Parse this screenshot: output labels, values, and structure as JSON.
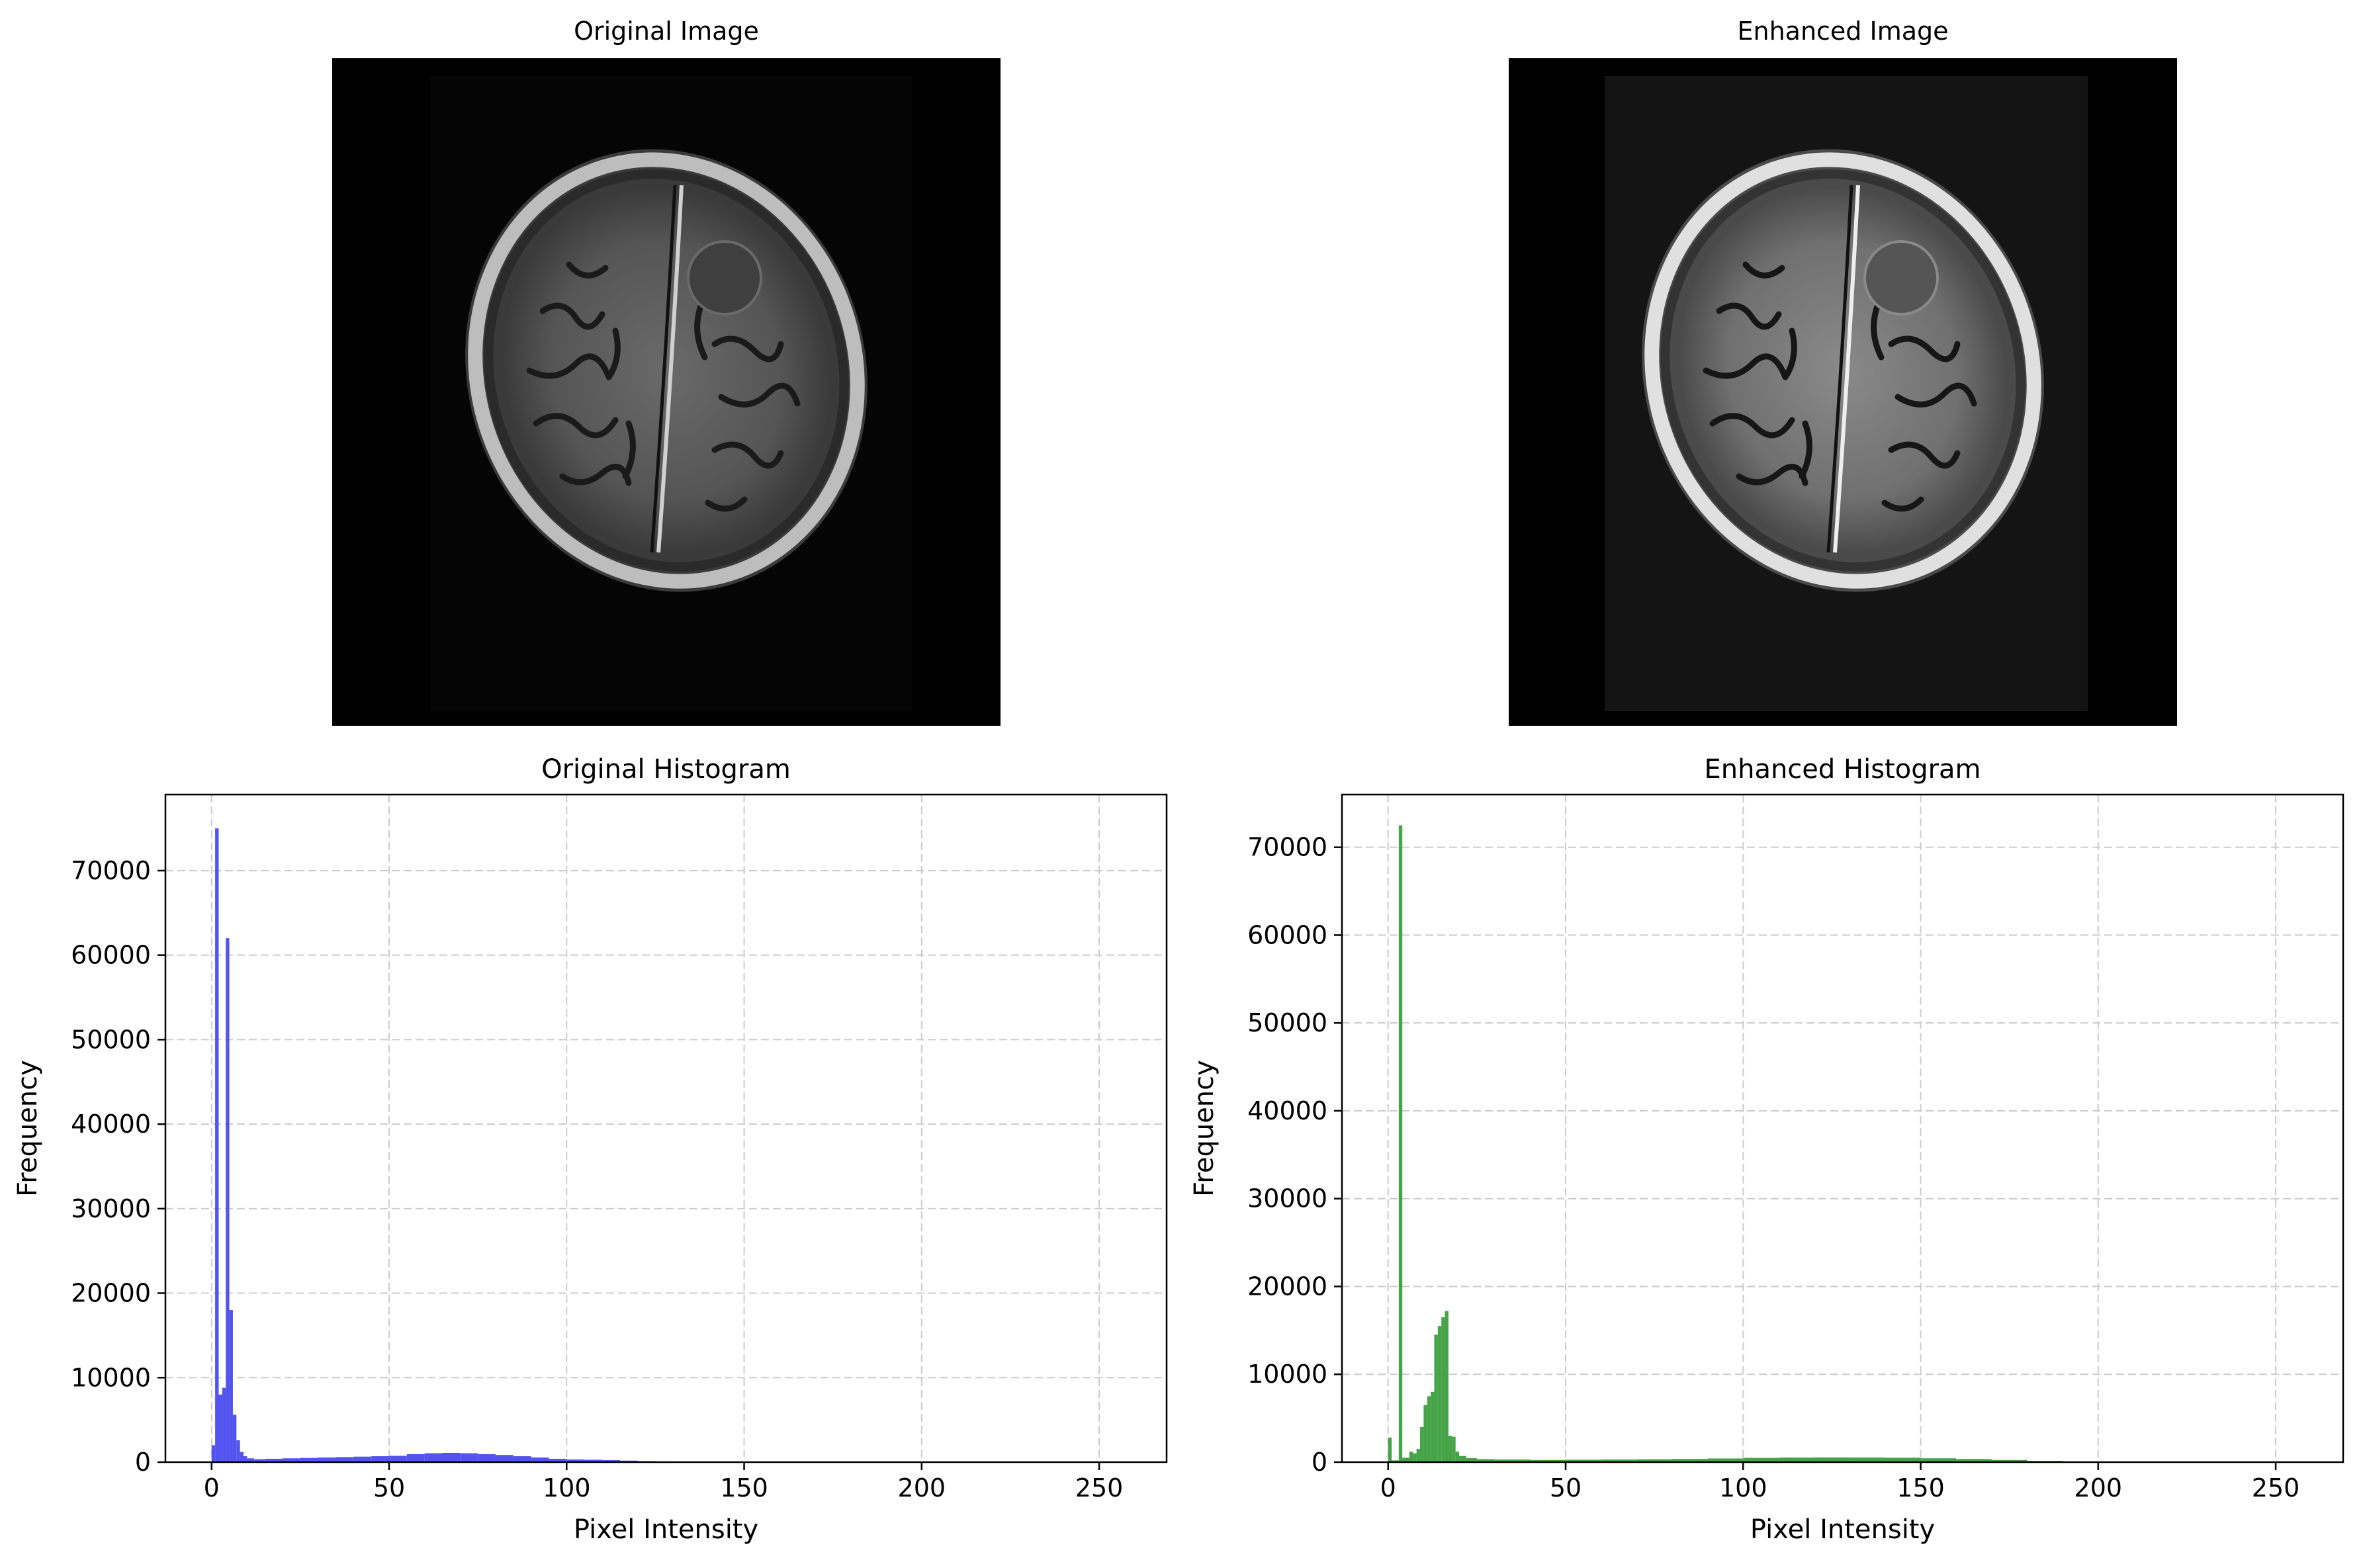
{
  "images": {
    "original": {
      "title": "Original Image"
    },
    "enhanced": {
      "title": "Enhanced Image"
    }
  },
  "colors": {
    "original_hist": "#4a4af0",
    "enhanced_hist": "#3d9e3d",
    "grid": "#cccccc"
  },
  "chart_data": [
    {
      "type": "bar",
      "title": "Original Histogram",
      "xlabel": "Pixel Intensity",
      "ylabel": "Frequency",
      "xlim": [
        -13,
        269
      ],
      "ylim": [
        0,
        79000
      ],
      "xticks": [
        0,
        50,
        100,
        150,
        200,
        250
      ],
      "yticks": [
        0,
        10000,
        20000,
        30000,
        40000,
        50000,
        60000,
        70000
      ],
      "grid": true,
      "series": [
        {
          "color": "#4a4af0",
          "bins": [
            [
              0,
              2000
            ],
            [
              1,
              75000
            ],
            [
              2,
              8000
            ],
            [
              3,
              8800
            ],
            [
              4,
              62000
            ],
            [
              5,
              18000
            ],
            [
              6,
              5600
            ],
            [
              7,
              2600
            ],
            [
              8,
              1200
            ],
            [
              9,
              700
            ],
            [
              10,
              450
            ],
            [
              12,
              350
            ],
            [
              15,
              400
            ],
            [
              20,
              450
            ],
            [
              25,
              500
            ],
            [
              30,
              550
            ],
            [
              35,
              600
            ],
            [
              40,
              650
            ],
            [
              45,
              700
            ],
            [
              50,
              750
            ],
            [
              55,
              950
            ],
            [
              60,
              1050
            ],
            [
              65,
              1100
            ],
            [
              70,
              1050
            ],
            [
              75,
              950
            ],
            [
              80,
              850
            ],
            [
              85,
              700
            ],
            [
              90,
              550
            ],
            [
              95,
              400
            ],
            [
              100,
              320
            ],
            [
              105,
              280
            ],
            [
              110,
              240
            ],
            [
              115,
              180
            ],
            [
              120,
              130
            ],
            [
              125,
              90
            ],
            [
              130,
              60
            ],
            [
              135,
              40
            ],
            [
              140,
              20
            ],
            [
              145,
              10
            ],
            [
              150,
              5
            ],
            [
              160,
              3
            ],
            [
              170,
              2
            ],
            [
              180,
              1
            ],
            [
              200,
              0
            ],
            [
              255,
              0
            ]
          ]
        }
      ]
    },
    {
      "type": "bar",
      "title": "Enhanced Histogram",
      "xlabel": "Pixel Intensity",
      "ylabel": "Frequency",
      "xlim": [
        -13,
        269
      ],
      "ylim": [
        0,
        76000
      ],
      "xticks": [
        0,
        50,
        100,
        150,
        200,
        250
      ],
      "yticks": [
        0,
        10000,
        20000,
        30000,
        40000,
        50000,
        60000,
        70000
      ],
      "grid": true,
      "series": [
        {
          "color": "#3d9e3d",
          "bins": [
            [
              0,
              2800
            ],
            [
              1,
              200
            ],
            [
              3,
              72500
            ],
            [
              4,
              500
            ],
            [
              6,
              1200
            ],
            [
              7,
              1000
            ],
            [
              8,
              1500
            ],
            [
              9,
              4000
            ],
            [
              10,
              6500
            ],
            [
              11,
              7500
            ],
            [
              12,
              8000
            ],
            [
              13,
              14500
            ],
            [
              14,
              15500
            ],
            [
              15,
              16500
            ],
            [
              16,
              17200
            ],
            [
              17,
              3000
            ],
            [
              18,
              2900
            ],
            [
              19,
              1200
            ],
            [
              20,
              700
            ],
            [
              22,
              450
            ],
            [
              25,
              350
            ],
            [
              30,
              300
            ],
            [
              40,
              250
            ],
            [
              50,
              280
            ],
            [
              60,
              300
            ],
            [
              70,
              330
            ],
            [
              80,
              370
            ],
            [
              90,
              420
            ],
            [
              100,
              480
            ],
            [
              110,
              520
            ],
            [
              120,
              540
            ],
            [
              130,
              530
            ],
            [
              140,
              500
            ],
            [
              150,
              440
            ],
            [
              160,
              360
            ],
            [
              170,
              250
            ],
            [
              180,
              150
            ],
            [
              190,
              90
            ],
            [
              200,
              50
            ],
            [
              210,
              20
            ],
            [
              220,
              5
            ],
            [
              230,
              0
            ],
            [
              255,
              0
            ]
          ]
        }
      ]
    }
  ]
}
